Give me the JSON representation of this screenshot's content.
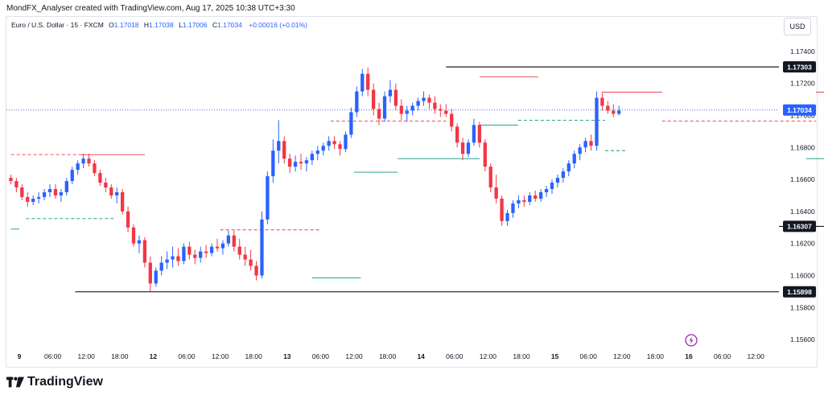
{
  "header": {
    "text": "MondFX_Analyser created with TradingView.com, Aug 17, 2025 10:38 UTC+3:30"
  },
  "legend": {
    "symbol": "Euro / U.S. Dollar · 15 · FXCM",
    "open_label": "O",
    "open": "1.17018",
    "high_label": "H",
    "high": "1.17038",
    "low_label": "L",
    "low": "1.17006",
    "close_label": "C",
    "close": "1.17034",
    "change": "+0.00016 (+0.01%)"
  },
  "currency_button": "USD",
  "brand": {
    "name": "TradingView",
    "logo": "tradingview-logo"
  },
  "colors": {
    "up": "#2962ff",
    "down": "#f23645",
    "level_line": "#000000",
    "swing_high": "#f23645",
    "swing_low": "#089981",
    "badge": "#2962ff"
  },
  "chart_data": {
    "type": "candlestick",
    "symbol": "EURUSD",
    "timeframe": "15",
    "ylim": [
      1.1555,
      1.1752
    ],
    "y_ticks": [
      "1.17400",
      "1.17200",
      "1.17000",
      "1.16800",
      "1.16600",
      "1.16400",
      "1.16200",
      "1.16000",
      "1.15800",
      "1.15600"
    ],
    "x_ticks": [
      "9",
      "06:00",
      "12:00",
      "18:00",
      "12",
      "06:00",
      "12:00",
      "18:00",
      "13",
      "06:00",
      "12:00",
      "18:00",
      "14",
      "06:00",
      "12:00",
      "18:00",
      "15",
      "06:00",
      "12:00",
      "18:00",
      "16",
      "06:00",
      "12:00"
    ],
    "x_ticks_bold": [
      "9",
      "12",
      "13",
      "14",
      "15",
      "16"
    ],
    "price_axis_labels": [
      {
        "text": "1.17303",
        "value": 1.17303,
        "style": "level"
      },
      {
        "text": "1.17034",
        "value": 1.17034,
        "style": "current"
      },
      {
        "text": "1.16307",
        "value": 1.16307,
        "style": "level"
      },
      {
        "text": "1.15898",
        "value": 1.15898,
        "style": "level"
      }
    ],
    "current_price": 1.17034,
    "key_levels": [
      {
        "price": 1.17303,
        "x_start": 12.75
      },
      {
        "price": 1.16307,
        "x_start": 42.88
      },
      {
        "price": 1.15898,
        "x_start": 1.67
      }
    ],
    "swing_highs": [
      {
        "price": 1.16755,
        "x": [
          -0.25,
          1.83
        ],
        "style": "dashed"
      },
      {
        "price": 1.16755,
        "x": [
          1.83,
          3.75
        ],
        "style": "solid"
      },
      {
        "price": 1.16285,
        "x": [
          6.0,
          9.0
        ],
        "style": "dashed"
      },
      {
        "price": 1.16965,
        "x": [
          9.3,
          12.75
        ],
        "style": "dashed"
      },
      {
        "price": 1.1724,
        "x": [
          13.75,
          15.5
        ],
        "style": "solid"
      },
      {
        "price": 1.17145,
        "x": [
          17.4,
          19.2
        ],
        "style": "solid"
      },
      {
        "price": 1.16965,
        "x": [
          19.2,
          23.8
        ],
        "style": "dashed"
      },
      {
        "price": 1.17145,
        "x": [
          23.8,
          25.25
        ],
        "style": "solid"
      }
    ],
    "swing_lows": [
      {
        "price": 1.1629,
        "x": [
          -0.25,
          0.0
        ],
        "style": "solid"
      },
      {
        "price": 1.16355,
        "x": [
          0.2,
          2.88
        ],
        "style": "dashed"
      },
      {
        "price": 1.15985,
        "x": [
          8.75,
          10.2
        ],
        "style": "solid"
      },
      {
        "price": 1.16645,
        "x": [
          10.0,
          11.3
        ],
        "style": "solid"
      },
      {
        "price": 1.1673,
        "x": [
          11.3,
          13.75
        ],
        "style": "solid"
      },
      {
        "price": 1.1694,
        "x": [
          13.75,
          14.9
        ],
        "style": "solid"
      },
      {
        "price": 1.1697,
        "x": [
          14.9,
          17.5
        ],
        "style": "dashed"
      },
      {
        "price": 1.1678,
        "x": [
          17.5,
          18.1
        ],
        "style": "dashed"
      },
      {
        "price": 1.1673,
        "x": [
          23.5,
          25.25
        ],
        "style": "solid"
      }
    ],
    "candles_ohlc_per_hour": [
      [
        1.1661,
        1.1663,
        1.1657,
        1.1659
      ],
      [
        1.1659,
        1.1661,
        1.1652,
        1.1655
      ],
      [
        1.1655,
        1.1657,
        1.1647,
        1.1649
      ],
      [
        1.1649,
        1.1652,
        1.1643,
        1.1646
      ],
      [
        1.1646,
        1.165,
        1.1644,
        1.1648
      ],
      [
        1.1648,
        1.1652,
        1.1645,
        1.1649
      ],
      [
        1.1649,
        1.1654,
        1.1647,
        1.1652
      ],
      [
        1.1652,
        1.1657,
        1.1649,
        1.1654
      ],
      [
        1.1654,
        1.1657,
        1.1648,
        1.165
      ],
      [
        1.165,
        1.1654,
        1.1646,
        1.1652
      ],
      [
        1.1652,
        1.1661,
        1.165,
        1.1659
      ],
      [
        1.1659,
        1.1668,
        1.1657,
        1.1666
      ],
      [
        1.1666,
        1.1672,
        1.1663,
        1.167
      ],
      [
        1.167,
        1.1676,
        1.1667,
        1.1673
      ],
      [
        1.1673,
        1.1676,
        1.1668,
        1.167
      ],
      [
        1.167,
        1.1672,
        1.1662,
        1.1664
      ],
      [
        1.1664,
        1.1666,
        1.1656,
        1.1658
      ],
      [
        1.1658,
        1.1661,
        1.1652,
        1.1655
      ],
      [
        1.1655,
        1.1657,
        1.1648,
        1.165
      ],
      [
        1.165,
        1.1655,
        1.1645,
        1.1652
      ],
      [
        1.1652,
        1.1654,
        1.1638,
        1.164
      ],
      [
        1.164,
        1.1643,
        1.1627,
        1.163
      ],
      [
        1.163,
        1.1632,
        1.1618,
        1.162
      ],
      [
        1.162,
        1.1625,
        1.1614,
        1.1622
      ],
      [
        1.1622,
        1.1624,
        1.1605,
        1.1608
      ],
      [
        1.1608,
        1.1612,
        1.159,
        1.1595
      ],
      [
        1.1595,
        1.1605,
        1.1593,
        1.1603
      ],
      [
        1.1603,
        1.1612,
        1.16,
        1.1608
      ],
      [
        1.1608,
        1.1615,
        1.1604,
        1.161
      ],
      [
        1.161,
        1.1618,
        1.1605,
        1.1612
      ],
      [
        1.1612,
        1.1617,
        1.1606,
        1.1609
      ],
      [
        1.1609,
        1.162,
        1.1607,
        1.1618
      ],
      [
        1.1618,
        1.1621,
        1.161,
        1.1613
      ],
      [
        1.1613,
        1.1616,
        1.1607,
        1.1611
      ],
      [
        1.1611,
        1.1618,
        1.1608,
        1.1615
      ],
      [
        1.1615,
        1.1619,
        1.1611,
        1.1614
      ],
      [
        1.1614,
        1.162,
        1.1612,
        1.1618
      ],
      [
        1.1618,
        1.1623,
        1.1615,
        1.1617
      ],
      [
        1.1617,
        1.1622,
        1.1613,
        1.162
      ],
      [
        1.162,
        1.1628,
        1.1618,
        1.1625
      ],
      [
        1.1625,
        1.1628,
        1.1615,
        1.1618
      ],
      [
        1.1618,
        1.1623,
        1.161,
        1.1613
      ],
      [
        1.1613,
        1.1618,
        1.1606,
        1.161
      ],
      [
        1.161,
        1.1616,
        1.1603,
        1.1606
      ],
      [
        1.1606,
        1.1609,
        1.1597,
        1.16
      ],
      [
        1.16,
        1.164,
        1.1598,
        1.1635
      ],
      [
        1.1635,
        1.1665,
        1.1632,
        1.1662
      ],
      [
        1.1662,
        1.1685,
        1.1658,
        1.1678
      ],
      [
        1.1678,
        1.1697,
        1.167,
        1.1684
      ],
      [
        1.1684,
        1.1687,
        1.167,
        1.1673
      ],
      [
        1.1673,
        1.1676,
        1.1664,
        1.1668
      ],
      [
        1.1668,
        1.1675,
        1.1665,
        1.1671
      ],
      [
        1.1671,
        1.1676,
        1.1666,
        1.167
      ],
      [
        1.167,
        1.1674,
        1.1665,
        1.1672
      ],
      [
        1.1672,
        1.1678,
        1.1669,
        1.1676
      ],
      [
        1.1676,
        1.1681,
        1.1672,
        1.1678
      ],
      [
        1.1678,
        1.1683,
        1.1675,
        1.1681
      ],
      [
        1.1681,
        1.1687,
        1.1678,
        1.1684
      ],
      [
        1.1684,
        1.1687,
        1.1679,
        1.1682
      ],
      [
        1.1682,
        1.1684,
        1.1675,
        1.1679
      ],
      [
        1.1679,
        1.169,
        1.1677,
        1.1688
      ],
      [
        1.1688,
        1.1705,
        1.1686,
        1.1702
      ],
      [
        1.1702,
        1.1718,
        1.1699,
        1.1715
      ],
      [
        1.1715,
        1.1729,
        1.1712,
        1.1726
      ],
      [
        1.1726,
        1.173,
        1.1712,
        1.1716
      ],
      [
        1.1716,
        1.172,
        1.17,
        1.1704
      ],
      [
        1.1704,
        1.1708,
        1.1694,
        1.1698
      ],
      [
        1.1698,
        1.1715,
        1.1696,
        1.1712
      ],
      [
        1.1712,
        1.1722,
        1.1708,
        1.1716
      ],
      [
        1.1716,
        1.172,
        1.1703,
        1.1706
      ],
      [
        1.1706,
        1.171,
        1.1697,
        1.1701
      ],
      [
        1.1701,
        1.1706,
        1.1696,
        1.1703
      ],
      [
        1.1703,
        1.1708,
        1.17,
        1.1706
      ],
      [
        1.1706,
        1.1711,
        1.1703,
        1.1709
      ],
      [
        1.1709,
        1.1715,
        1.1706,
        1.1711
      ],
      [
        1.1711,
        1.1713,
        1.1704,
        1.1708
      ],
      [
        1.1708,
        1.1712,
        1.1701,
        1.1704
      ],
      [
        1.1704,
        1.1707,
        1.1699,
        1.1703
      ],
      [
        1.1703,
        1.1707,
        1.1699,
        1.1701
      ],
      [
        1.1701,
        1.1704,
        1.169,
        1.1693
      ],
      [
        1.1693,
        1.1695,
        1.168,
        1.1683
      ],
      [
        1.1683,
        1.1686,
        1.1672,
        1.1676
      ],
      [
        1.1676,
        1.1685,
        1.1674,
        1.1683
      ],
      [
        1.1683,
        1.1698,
        1.1681,
        1.1694
      ],
      [
        1.1694,
        1.1696,
        1.168,
        1.1683
      ],
      [
        1.1683,
        1.1685,
        1.1665,
        1.1668
      ],
      [
        1.1668,
        1.167,
        1.1652,
        1.1655
      ],
      [
        1.1655,
        1.1663,
        1.1645,
        1.1648
      ],
      [
        1.1648,
        1.165,
        1.1631,
        1.1634
      ],
      [
        1.1634,
        1.1641,
        1.1631,
        1.1639
      ],
      [
        1.1639,
        1.1647,
        1.1636,
        1.1645
      ],
      [
        1.1645,
        1.165,
        1.1642,
        1.1647
      ],
      [
        1.1647,
        1.165,
        1.1643,
        1.1646
      ],
      [
        1.1646,
        1.1652,
        1.1644,
        1.165
      ],
      [
        1.165,
        1.1653,
        1.1646,
        1.1648
      ],
      [
        1.1648,
        1.1654,
        1.1646,
        1.1652
      ],
      [
        1.1652,
        1.1656,
        1.1649,
        1.1654
      ],
      [
        1.1654,
        1.166,
        1.1651,
        1.1658
      ],
      [
        1.1658,
        1.1663,
        1.1655,
        1.1661
      ],
      [
        1.1661,
        1.1667,
        1.1658,
        1.1665
      ],
      [
        1.1665,
        1.1672,
        1.1662,
        1.167
      ],
      [
        1.167,
        1.1678,
        1.1667,
        1.1676
      ],
      [
        1.1676,
        1.1682,
        1.1672,
        1.168
      ],
      [
        1.168,
        1.1686,
        1.1677,
        1.1684
      ],
      [
        1.1684,
        1.1688,
        1.1678,
        1.1681
      ],
      [
        1.1681,
        1.1715,
        1.1678,
        1.1711
      ],
      [
        1.1711,
        1.1714,
        1.1703,
        1.1706
      ],
      [
        1.1706,
        1.1709,
        1.1701,
        1.1703
      ],
      [
        1.1703,
        1.1707,
        1.1699,
        1.1701
      ],
      [
        1.1701,
        1.1706,
        1.17,
        1.1703
      ]
    ]
  }
}
